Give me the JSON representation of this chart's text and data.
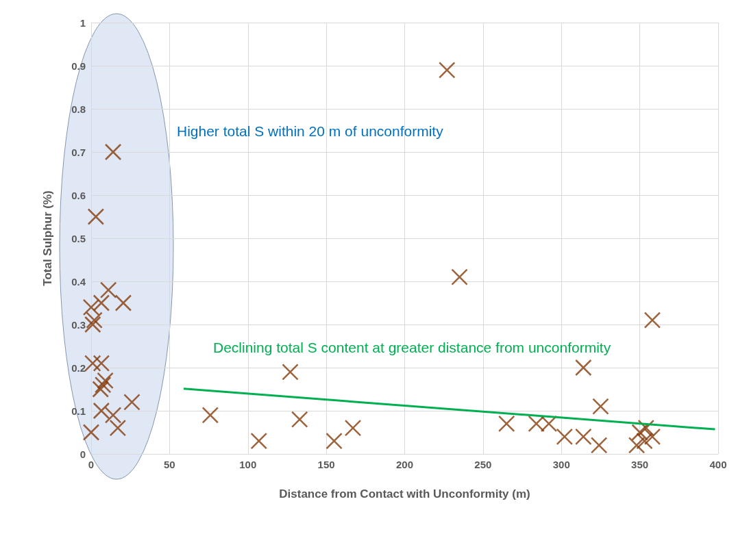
{
  "chart_data": {
    "type": "scatter",
    "xlabel": "Distance from Contact with Unconformity (m)",
    "ylabel": "Total Sulphur (%)",
    "x": [
      14,
      3,
      11,
      6.5,
      20.5,
      0,
      2,
      1,
      1,
      6.5,
      9,
      7.5,
      6,
      26,
      6.5,
      14,
      17,
      0,
      76,
      107,
      127,
      133,
      155,
      167,
      227,
      235,
      358,
      314,
      325,
      265,
      284,
      292,
      302,
      314,
      324,
      348,
      350,
      353,
      354,
      358
    ],
    "series": [
      {
        "color": "#843c0c",
        "values": [
          0.7,
          0.55,
          0.38,
          0.35,
          0.35,
          0.34,
          0.31,
          0.3,
          0.21,
          0.21,
          0.17,
          0.16,
          0.15,
          0.12,
          0.1,
          0.09,
          0.06,
          0.05,
          0.09,
          0.03,
          0.19,
          0.08,
          0.03,
          0.06,
          0.89,
          0.41,
          0.31,
          0.2,
          0.11,
          0.07,
          0.07,
          0.07,
          0.04,
          0.04,
          0.02,
          0.02,
          0.05,
          0.03,
          0.06,
          0.04
        ]
      },
      {
        "type": "line",
        "color": "#00b050",
        "x": [
          59,
          398
        ],
        "values": [
          0.151,
          0.057
        ],
        "marker": "none"
      }
    ],
    "marker": "cross",
    "xlim": [
      0,
      400
    ],
    "xticks": [
      0,
      50,
      100,
      150,
      200,
      250,
      300,
      350,
      400
    ],
    "ylim": [
      0,
      1
    ],
    "yticks": [
      0,
      0.1,
      0.2,
      0.3,
      0.4,
      0.5,
      0.6,
      0.7,
      0.8,
      0.9,
      1
    ],
    "grid": true,
    "annotations": [
      "Higher total S within 20 m of unconformity",
      "Declining total S content at greater distance from unconformity"
    ]
  }
}
